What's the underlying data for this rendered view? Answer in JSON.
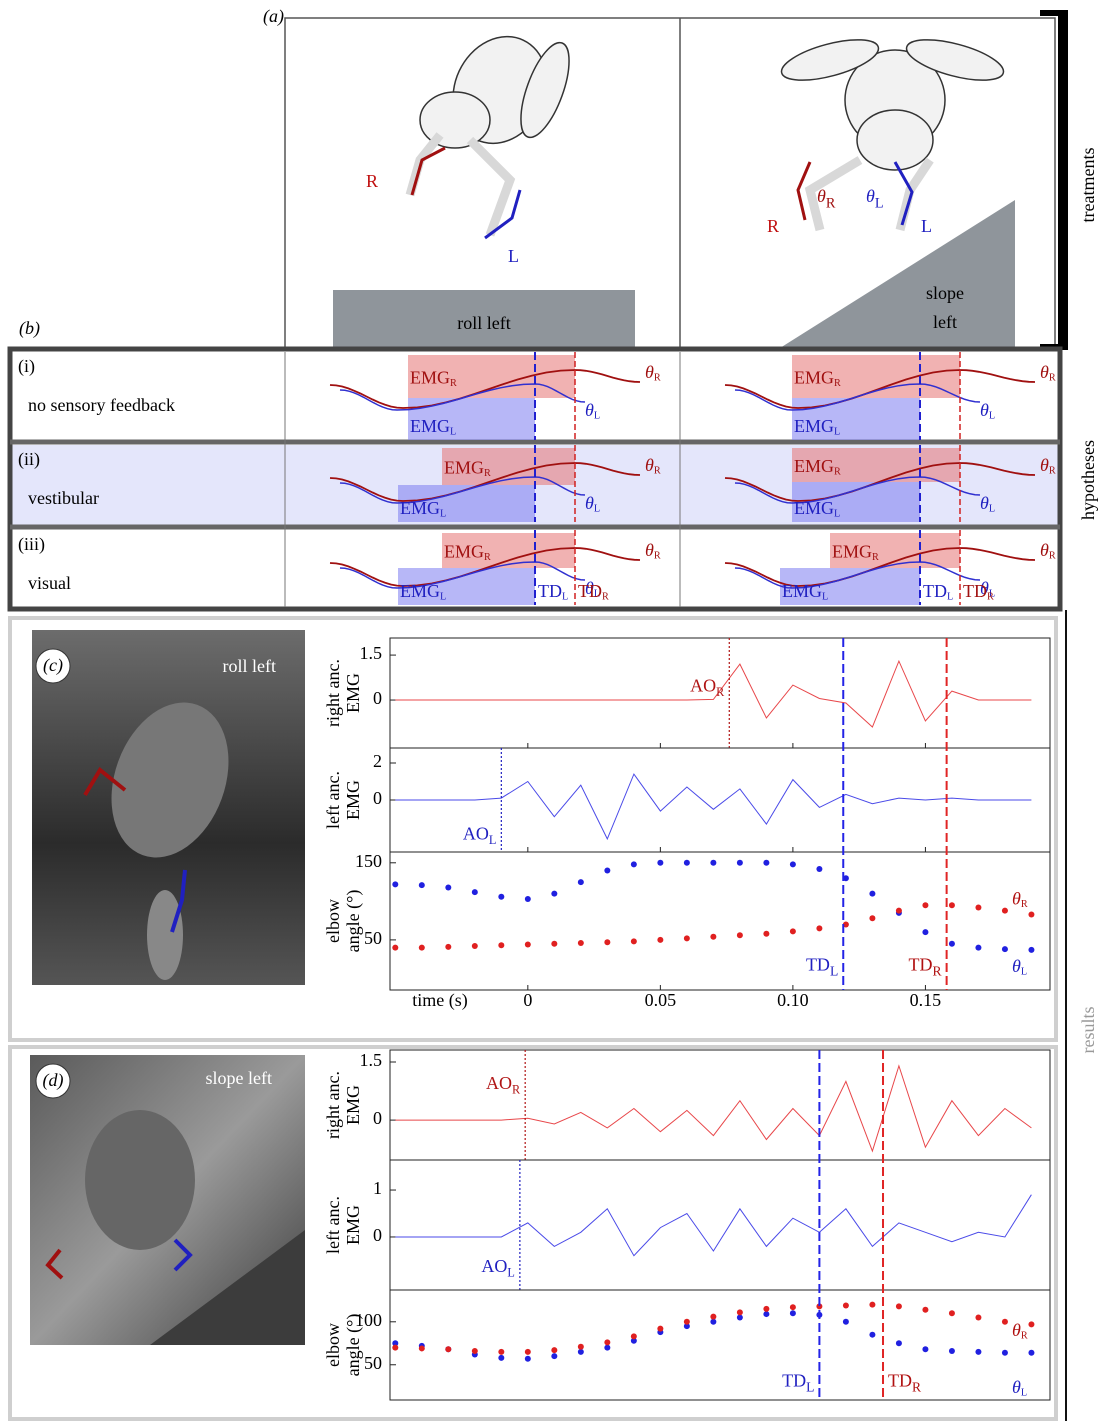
{
  "panel_a": {
    "label": "(a)",
    "side_label": "treatments",
    "columns": [
      {
        "caption": [
          "roll left"
        ],
        "right_limb": "R",
        "left_limb": "L"
      },
      {
        "caption": [
          "slope",
          "left"
        ],
        "right_limb": "R",
        "left_limb": "L",
        "right_angle": {
          "text": "θ",
          "sub": "R"
        },
        "left_angle": {
          "text": "θ",
          "sub": "L"
        }
      }
    ]
  },
  "panel_b": {
    "label": "(b)",
    "side_label": "hypotheses",
    "rows": [
      {
        "number": "(i)",
        "name": "no sensory feedback"
      },
      {
        "number": "(ii)",
        "name": "vestibular"
      },
      {
        "number": "(iii)",
        "name": "visual"
      }
    ],
    "trace_labels": {
      "emg_r": {
        "text": "EMG",
        "sub": "R"
      },
      "emg_l": {
        "text": "EMG",
        "sub": "L"
      },
      "theta_r": {
        "text": "θ",
        "sub": "R"
      },
      "theta_l": {
        "text": "θ",
        "sub": "L"
      },
      "td_l": {
        "text": "TD",
        "sub": "L"
      },
      "td_r": {
        "text": "TD",
        "sub": "R"
      }
    }
  },
  "results_label": "results",
  "panel_c": {
    "label": "(c)",
    "photo_label": "roll left",
    "x_label": "time (s)",
    "xlim": [
      -0.052,
      0.197
    ],
    "xticks": [
      0,
      0.05,
      {
        "value": 0.1,
        "label": "0.10"
      },
      0.15
    ],
    "t": [
      -0.05,
      -0.04,
      -0.03,
      -0.02,
      -0.01,
      0,
      0.01,
      0.02,
      0.03,
      0.04,
      0.05,
      0.06,
      0.07,
      0.08,
      0.09,
      0.1,
      0.11,
      0.12,
      0.13,
      0.14,
      0.15,
      0.16,
      0.17,
      0.18,
      0.19
    ],
    "subplots": [
      {
        "y_label": [
          "right anc.",
          "EMG"
        ],
        "ylim": [
          -1.6,
          2.07
        ],
        "yticks": [
          0,
          1.5
        ],
        "series": [
          {
            "style": "line",
            "color": "#e8474a",
            "values": [
              0,
              0,
              0,
              0,
              0,
              0,
              0,
              0,
              0,
              0,
              0,
              0,
              0.02,
              1.2,
              -0.6,
              0.5,
              0.05,
              -0.1,
              -0.9,
              1.3,
              -0.7,
              0.3,
              0,
              0,
              0
            ]
          }
        ],
        "events": [
          {
            "label": {
              "text": "AO",
              "sub": "R"
            },
            "x": 0.076,
            "color": "#b01515"
          }
        ]
      },
      {
        "y_label": [
          "left anc.",
          "EMG"
        ],
        "ylim": [
          -2.81,
          2.81
        ],
        "yticks": [
          0,
          2
        ],
        "series": [
          {
            "style": "line",
            "color": "#4a4ae8",
            "values": [
              0,
              0,
              0,
              0,
              0.1,
              1.0,
              -0.9,
              0.8,
              -2.1,
              1.4,
              -0.6,
              0.7,
              -0.5,
              0.6,
              -1.3,
              1.1,
              -0.4,
              0.3,
              -0.2,
              0.1,
              0,
              0.1,
              0,
              0,
              0
            ]
          }
        ],
        "events": [
          {
            "label": {
              "text": "AO",
              "sub": "L"
            },
            "x": -0.01,
            "color": "#2020c0"
          }
        ]
      },
      {
        "y_label": [
          "elbow",
          "angle (°)"
        ],
        "ylim": [
          -15,
          164
        ],
        "yticks": [
          50,
          150
        ],
        "series": [
          {
            "style": "dots",
            "color": "#2020e0",
            "label": {
              "text": "θ",
              "sub": "L"
            },
            "values": [
              122,
              121,
              118,
              112,
              106,
              103,
              110,
              125,
              140,
              148,
              150,
              150,
              150,
              150,
              150,
              148,
              142,
              130,
              110,
              85,
              60,
              45,
              40,
              38,
              37
            ]
          },
          {
            "style": "dots",
            "color": "#e02020",
            "label": {
              "text": "θ",
              "sub": "R"
            },
            "values": [
              40,
              40,
              41,
              42,
              43,
              44,
              45,
              46,
              47,
              48,
              50,
              52,
              54,
              56,
              58,
              61,
              65,
              70,
              78,
              88,
              95,
              95,
              92,
              88,
              83
            ]
          }
        ],
        "events": []
      }
    ],
    "markers": [
      {
        "label": {
          "text": "TD",
          "sub": "L"
        },
        "x": 0.119,
        "color": "#2323e6"
      },
      {
        "label": {
          "text": "TD",
          "sub": "R"
        },
        "x": 0.158,
        "color": "#e02525"
      }
    ]
  },
  "panel_d": {
    "label": "(d)",
    "photo_label": "slope left",
    "xlim": [
      -0.052,
      0.197
    ],
    "t": [
      -0.05,
      -0.04,
      -0.03,
      -0.02,
      -0.01,
      0,
      0.01,
      0.02,
      0.03,
      0.04,
      0.05,
      0.06,
      0.07,
      0.08,
      0.09,
      0.1,
      0.11,
      0.12,
      0.13,
      0.14,
      0.15,
      0.16,
      0.17,
      0.18,
      0.19
    ],
    "subplots": [
      {
        "y_label": [
          "right anc.",
          "EMG"
        ],
        "ylim": [
          -1.03,
          1.81
        ],
        "yticks": [
          0,
          1.5
        ],
        "series": [
          {
            "style": "line",
            "color": "#e8474a",
            "values": [
              0,
              0,
              0,
              0,
              0,
              0.05,
              -0.1,
              0.2,
              -0.2,
              0.3,
              -0.3,
              0.25,
              -0.4,
              0.5,
              -0.5,
              0.3,
              -0.4,
              1.0,
              -0.8,
              1.4,
              -0.7,
              0.5,
              -0.4,
              0.3,
              -0.2
            ]
          }
        ],
        "events": [
          {
            "label": {
              "text": "AO",
              "sub": "R"
            },
            "x": -0.001,
            "color": "#b01515"
          }
        ]
      },
      {
        "y_label": [
          "left anc.",
          "EMG"
        ],
        "ylim": [
          -1.13,
          1.64
        ],
        "yticks": [
          0,
          1
        ],
        "series": [
          {
            "style": "line",
            "color": "#4a4ae8",
            "values": [
              0,
              0,
              0,
              0,
              0,
              0.3,
              -0.2,
              0.1,
              0.6,
              -0.4,
              0.2,
              0.5,
              -0.3,
              0.6,
              -0.2,
              0.4,
              0.1,
              0.6,
              -0.2,
              0.3,
              0.1,
              -0.1,
              0.1,
              0,
              0.9
            ]
          }
        ],
        "events": [
          {
            "label": {
              "text": "AO",
              "sub": "L"
            },
            "x": -0.003,
            "color": "#2020c0"
          }
        ]
      },
      {
        "y_label": [
          "elbow",
          "angle (°)"
        ],
        "ylim": [
          9,
          137
        ],
        "yticks": [
          50,
          100
        ],
        "series": [
          {
            "style": "dots",
            "color": "#2020e0",
            "label": {
              "text": "θ",
              "sub": "L"
            },
            "values": [
              75,
              72,
              68,
              62,
              58,
              57,
              60,
              65,
              70,
              78,
              88,
              95,
              100,
              105,
              109,
              110,
              108,
              100,
              85,
              75,
              68,
              66,
              65,
              64,
              64
            ]
          },
          {
            "style": "dots",
            "color": "#e02020",
            "label": {
              "text": "θ",
              "sub": "R"
            },
            "values": [
              70,
              69,
              68,
              66,
              65,
              65,
              67,
              71,
              76,
              83,
              92,
              100,
              106,
              111,
              115,
              117,
              118,
              119,
              120,
              118,
              114,
              110,
              105,
              100,
              97
            ]
          }
        ],
        "events": []
      }
    ],
    "markers": [
      {
        "label": {
          "text": "TD",
          "sub": "L"
        },
        "x": 0.11,
        "color": "#2323e6"
      },
      {
        "label": {
          "text": "TD",
          "sub": "R"
        },
        "x": 0.134,
        "color": "#e02525"
      }
    ]
  }
}
